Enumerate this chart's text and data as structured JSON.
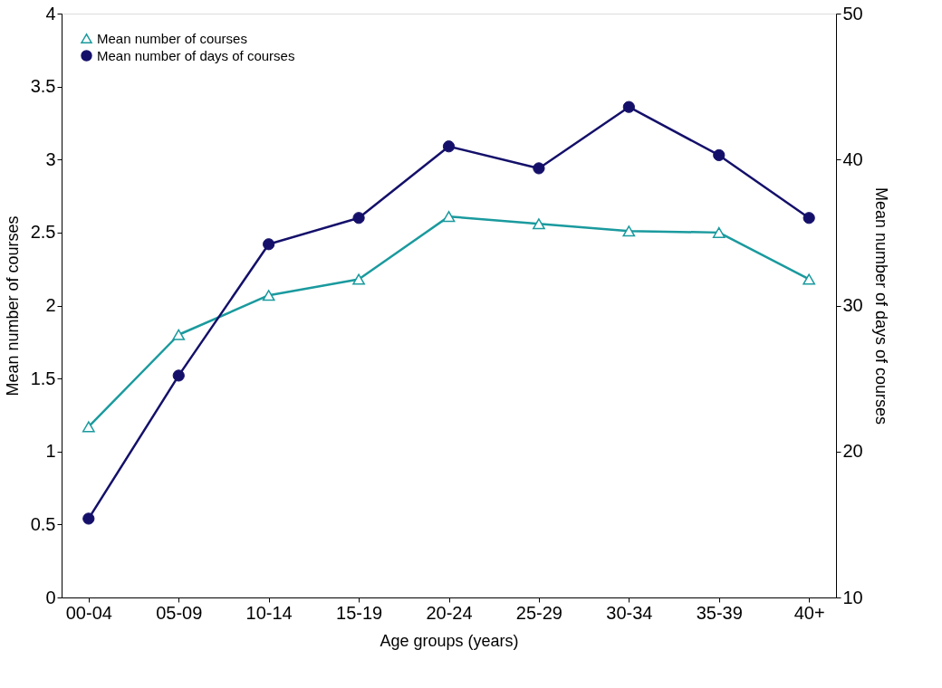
{
  "chart_data": {
    "type": "line",
    "xlabel": "Age groups (years)",
    "ylabel": "Mean number of courses",
    "y2label": "Mean number of days of courses",
    "categories": [
      "00-04",
      "05-09",
      "10-14",
      "15-19",
      "20-24",
      "25-29",
      "30-34",
      "35-39",
      "40+"
    ],
    "series": [
      {
        "name": "Mean number of courses",
        "color": "#1a9a9e",
        "marker": "triangle",
        "values": [
          1.17,
          1.8,
          2.07,
          2.18,
          2.61,
          2.56,
          2.51,
          2.5,
          2.18
        ]
      },
      {
        "name": "Mean number of days of courses",
        "color": "#14106a",
        "marker": "circle",
        "axis": "y2",
        "values": [
          15.4,
          25.2,
          34.2,
          36.0,
          40.9,
          39.4,
          43.6,
          40.3,
          36.0
        ]
      }
    ],
    "ylim": [
      0,
      4
    ],
    "yticks": [
      0,
      0.5,
      1,
      1.5,
      2,
      2.5,
      3,
      3.5,
      4
    ],
    "y2lim": [
      10,
      50
    ],
    "y2ticks": [
      10,
      20,
      30,
      40,
      50
    ],
    "grid": false,
    "legend": "top left"
  }
}
